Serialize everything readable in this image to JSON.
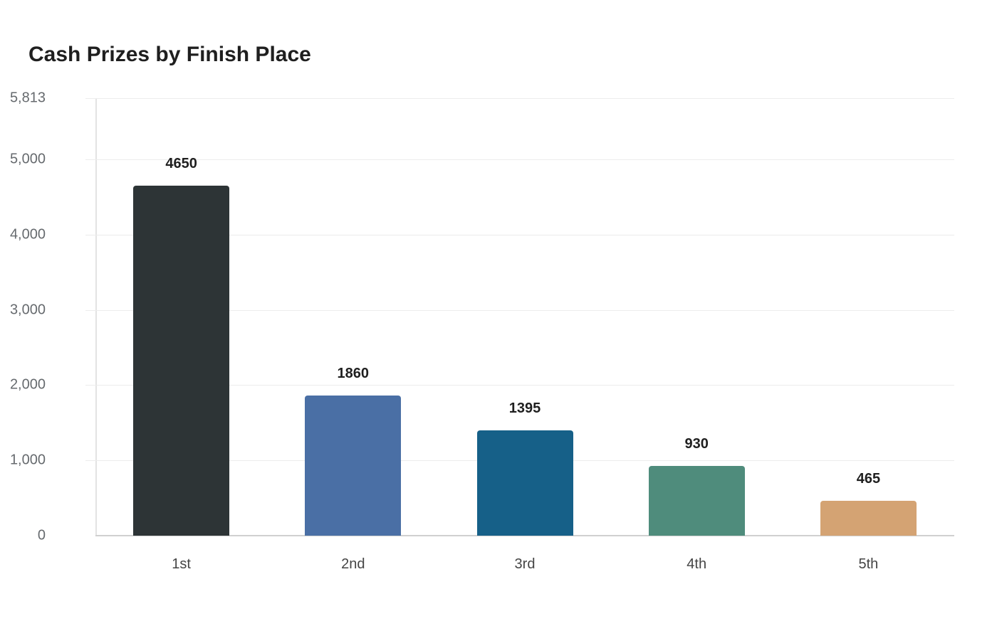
{
  "chart_data": {
    "type": "bar",
    "title": "Cash Prizes by Finish Place",
    "xlabel": "",
    "ylabel": "",
    "categories": [
      "1st",
      "2nd",
      "3rd",
      "4th",
      "5th"
    ],
    "values": [
      4650,
      1860,
      1395,
      930,
      465
    ],
    "colors": [
      "#2d3436",
      "#4a6fa5",
      "#166088",
      "#4f8c7c",
      "#d4a373"
    ],
    "ylim": [
      0,
      5813
    ],
    "yticks": [
      0,
      1000,
      2000,
      3000,
      4000,
      5000,
      5813
    ],
    "ytick_labels": [
      "0",
      "1,000",
      "2,000",
      "3,000",
      "4,000",
      "5,000",
      "5,813"
    ],
    "grid": true,
    "legend": null,
    "data_labels": true
  }
}
